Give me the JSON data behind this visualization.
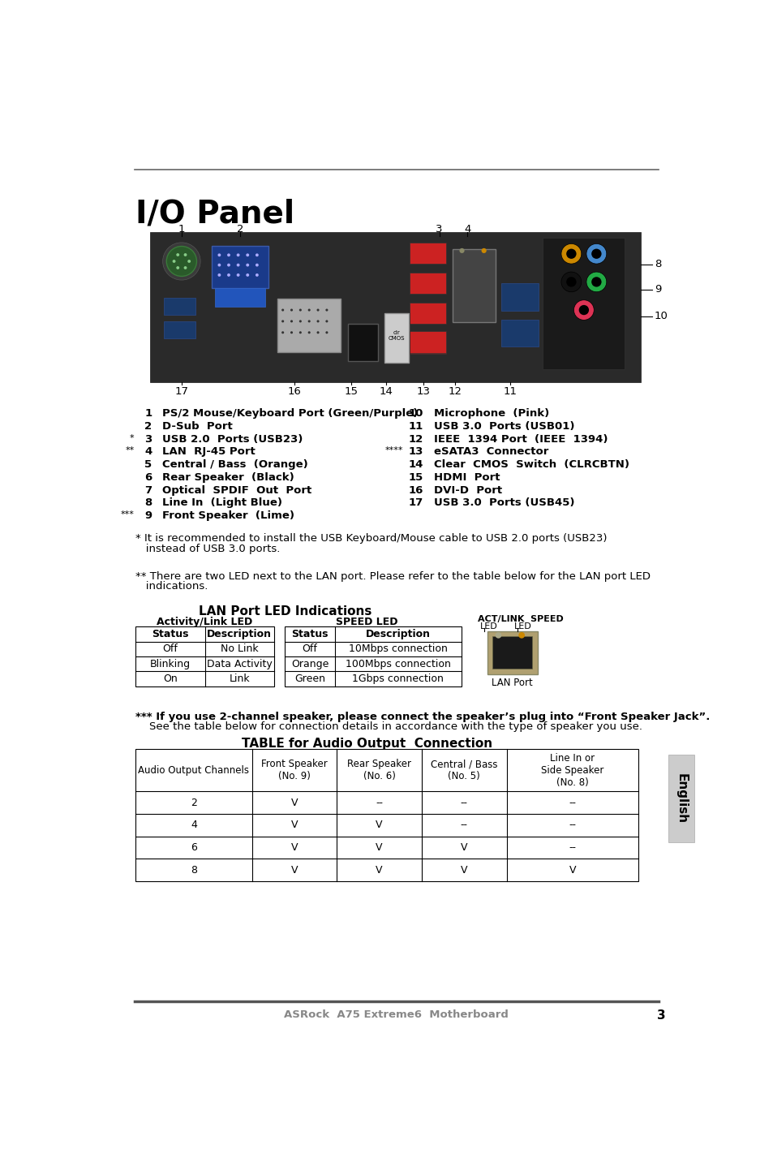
{
  "title": "I/O Panel",
  "background_color": "#ffffff",
  "port_labels_left": [
    {
      "num": "1",
      "prefix": "",
      "text": "PS/2 Mouse/Keyboard Port (Green/Purple)"
    },
    {
      "num": "2",
      "prefix": "",
      "text": "D-Sub  Port"
    },
    {
      "num": "3",
      "prefix": "* ",
      "text": "USB 2.0  Ports (USB23)"
    },
    {
      "num": "4",
      "prefix": "** ",
      "text": "LAN  RJ-45 Port"
    },
    {
      "num": "5",
      "prefix": "",
      "text": "Central / Bass  (Orange)"
    },
    {
      "num": "6",
      "prefix": "",
      "text": "Rear Speaker  (Black)"
    },
    {
      "num": "7",
      "prefix": "",
      "text": "Optical  SPDIF  Out  Port"
    },
    {
      "num": "8",
      "prefix": "",
      "text": "Line In  (Light Blue)"
    },
    {
      "num": "9",
      "prefix": "*** ",
      "text": "Front Speaker  (Lime)"
    }
  ],
  "port_labels_right": [
    {
      "num": "10",
      "prefix": "",
      "text": "Microphone  (Pink)"
    },
    {
      "num": "11",
      "prefix": "",
      "text": "USB 3.0  Ports (USB01)"
    },
    {
      "num": "12",
      "prefix": "",
      "text": "IEEE  1394 Port  (IEEE  1394)"
    },
    {
      "num": "13",
      "prefix": "**** ",
      "text": "eSATA3  Connector"
    },
    {
      "num": "14",
      "prefix": "",
      "text": "Clear  CMOS  Switch  (CLRCBTN)"
    },
    {
      "num": "15",
      "prefix": "",
      "text": "HDMI  Port"
    },
    {
      "num": "16",
      "prefix": "",
      "text": "DVI-D  Port"
    },
    {
      "num": "17",
      "prefix": "",
      "text": "USB 3.0  Ports (USB45)"
    }
  ],
  "note1_line1": "* It is recommended to install the USB Keyboard/Mouse cable to USB 2.0 ports (USB23)",
  "note1_line2": "   instead of USB 3.0 ports.",
  "note2_line1": "** There are two LED next to the LAN port. Please refer to the table below for the LAN port LED",
  "note2_line2": "   indications.",
  "lan_table_title": "LAN Port LED Indications",
  "lan_act_title": "Activity/Link LED",
  "lan_speed_title": "SPEED LED",
  "lan_act_rows": [
    [
      "Status",
      "Description"
    ],
    [
      "Off",
      "No Link"
    ],
    [
      "Blinking",
      "Data Activity"
    ],
    [
      "On",
      "Link"
    ]
  ],
  "lan_speed_rows": [
    [
      "Status",
      "Description"
    ],
    [
      "Off",
      "10Mbps connection"
    ],
    [
      "Orange",
      "100Mbps connection"
    ],
    [
      "Green",
      "1Gbps connection"
    ]
  ],
  "lan_port_label": "LAN Port",
  "act_link_top": "ACT/LINK  SPEED",
  "led_row": "LED          LED",
  "note3_line1": "*** If you use 2-channel speaker, please connect the speaker’s plug into “Front Speaker Jack”.",
  "note3_line2": "    See the table below for connection details in accordance with the type of speaker you use.",
  "audio_table_title": "TABLE for Audio Output  Connection",
  "audio_col_headers": [
    "Audio Output Channels",
    "Front Speaker\n(No. 9)",
    "Rear Speaker\n(No. 6)",
    "Central / Bass\n(No. 5)",
    "Line In or\nSide Speaker\n(No. 8)"
  ],
  "audio_rows": [
    [
      "2",
      "V",
      "--",
      "--",
      "--"
    ],
    [
      "4",
      "V",
      "V",
      "--",
      "--"
    ],
    [
      "6",
      "V",
      "V",
      "V",
      "--"
    ],
    [
      "8",
      "V",
      "V",
      "V",
      "V"
    ]
  ],
  "footer_text": "ASRock  A75 Extreme6  Motherboard",
  "page_number": "3",
  "english_tab": "English"
}
